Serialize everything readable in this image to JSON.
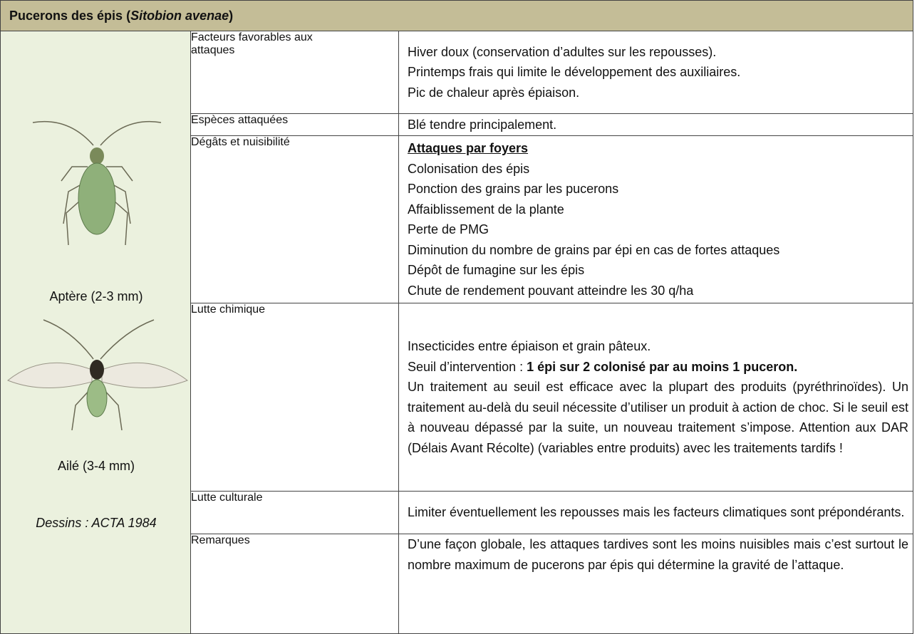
{
  "header": {
    "title_parts": [
      "Pucerons des épis (",
      "Sitobion avenae",
      ")"
    ]
  },
  "illustrations": {
    "captions": [
      "Aptère (2-3 mm)",
      "Ailé (3-4 mm)"
    ],
    "credit": "Dessins : ACTA 1984"
  },
  "rows": [
    {
      "label": "Facteurs favorables aux attaques",
      "lines": [
        "Hiver doux (conservation d’adultes sur les repousses).",
        "Printemps frais qui limite le développement des auxiliaires.",
        "Pic de chaleur après épiaison."
      ]
    },
    {
      "label": "Espèces attaquées",
      "lines": [
        "Blé tendre principalement."
      ]
    },
    {
      "label": "Dégâts et nuisibilité",
      "heading": "Attaques par foyers",
      "lines": [
        "Colonisation des épis",
        "Ponction des grains par les pucerons",
        "Affaiblissement de la plante",
        "Perte de PMG",
        "Diminution du nombre de grains par épi en cas de fortes attaques",
        "Dépôt de fumagine sur les épis",
        "Chute de rendement pouvant atteindre les 30 q/ha"
      ]
    },
    {
      "label": "Lutte chimique",
      "lines": [
        "Insecticides entre épiaison et grain pâteux."
      ],
      "threshold": {
        "prefix": "Seuil d’intervention : ",
        "bold": "1 épi sur 2 colonisé par au moins 1 puceron."
      },
      "paragraph": "Un traitement au seuil est efficace avec la plupart des produits (pyréthrinoïdes). Un traitement au-delà du seuil nécessite d’utiliser un produit à action de choc. Si le seuil est à nouveau dépassé par la suite, un nouveau traitement s’impose. Attention aux DAR (Délais Avant Récolte) (variables entre produits) avec les traitements tardifs !"
    },
    {
      "label": "Lutte culturale",
      "paragraph": "Limiter éventuellement les repousses mais les facteurs climatiques sont prépondérants."
    },
    {
      "label": "Remarques",
      "paragraph": "D’une façon globale, les attaques tardives sont les moins nuisibles mais c’est surtout le nombre maximum de pucerons par épis qui détermine la gravité de l’attaque."
    }
  ]
}
